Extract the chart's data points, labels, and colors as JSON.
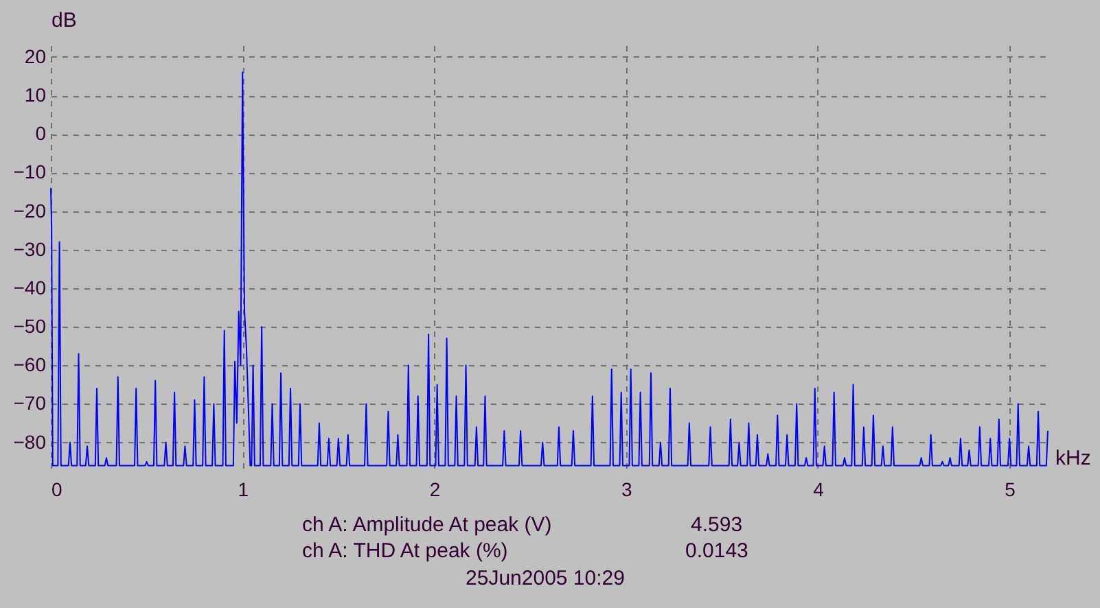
{
  "chart_data": {
    "type": "line",
    "ylabel": "dB",
    "xlabel": "kHz",
    "annotations": [
      "ch A: Amplitude At peak (V)",
      "4.593",
      "ch A: THD At peak (%)",
      "0.0143",
      "25Jun2005  10:29"
    ],
    "x": [
      0,
      0.004,
      0.01,
      0.037,
      0.045,
      0.053,
      0.092,
      0.1,
      0.108,
      0.137,
      0.145,
      0.153,
      0.182,
      0.19,
      0.198,
      0.232,
      0.24,
      0.248,
      0.282,
      0.29,
      0.298,
      0.342,
      0.35,
      0.358,
      0.437,
      0.445,
      0.453,
      0.492,
      0.5,
      0.508,
      0.537,
      0.545,
      0.553,
      0.592,
      0.6,
      0.608,
      0.637,
      0.645,
      0.653,
      0.692,
      0.7,
      0.708,
      0.742,
      0.75,
      0.758,
      0.792,
      0.8,
      0.808,
      0.842,
      0.85,
      0.858,
      0.897,
      0.905,
      0.913,
      0.952,
      0.96,
      0.97,
      0.98,
      0.99,
      1.0,
      1.01,
      1.02,
      1.03,
      1.04,
      1.047,
      1.055,
      1.063,
      1.092,
      1.1,
      1.108,
      1.147,
      1.155,
      1.163,
      1.192,
      1.2,
      1.208,
      1.242,
      1.25,
      1.258,
      1.292,
      1.3,
      1.308,
      1.392,
      1.4,
      1.408,
      1.442,
      1.45,
      1.458,
      1.492,
      1.5,
      1.508,
      1.542,
      1.55,
      1.558,
      1.637,
      1.645,
      1.653,
      1.752,
      1.76,
      1.768,
      1.802,
      1.81,
      1.818,
      1.857,
      1.865,
      1.873,
      1.907,
      1.915,
      1.923,
      1.962,
      1.97,
      1.978,
      2.007,
      2.015,
      2.023,
      2.057,
      2.065,
      2.073,
      2.107,
      2.115,
      2.123,
      2.157,
      2.165,
      2.173,
      2.212,
      2.22,
      2.228,
      2.257,
      2.265,
      2.273,
      2.357,
      2.365,
      2.373,
      2.442,
      2.45,
      2.458,
      2.557,
      2.565,
      2.573,
      2.642,
      2.65,
      2.658,
      2.717,
      2.725,
      2.733,
      2.817,
      2.825,
      2.833,
      2.917,
      2.925,
      2.933,
      2.967,
      2.975,
      2.983,
      3.017,
      3.025,
      3.033,
      3.067,
      3.075,
      3.083,
      3.122,
      3.13,
      3.138,
      3.172,
      3.18,
      3.188,
      3.222,
      3.23,
      3.238,
      3.322,
      3.33,
      3.338,
      3.432,
      3.44,
      3.448,
      3.537,
      3.545,
      3.553,
      3.582,
      3.59,
      3.598,
      3.632,
      3.64,
      3.648,
      3.677,
      3.685,
      3.693,
      3.732,
      3.74,
      3.748,
      3.782,
      3.79,
      3.798,
      3.832,
      3.84,
      3.848,
      3.882,
      3.89,
      3.898,
      3.932,
      3.94,
      3.948,
      3.977,
      3.985,
      3.993,
      4.027,
      4.035,
      4.043,
      4.077,
      4.085,
      4.093,
      4.132,
      4.14,
      4.148,
      4.177,
      4.185,
      4.193,
      4.232,
      4.24,
      4.248,
      4.282,
      4.29,
      4.298,
      4.332,
      4.34,
      4.348,
      4.382,
      4.39,
      4.398,
      4.532,
      4.54,
      4.548,
      4.582,
      4.59,
      4.598,
      4.642,
      4.65,
      4.658,
      4.682,
      4.69,
      4.698,
      4.737,
      4.745,
      4.753,
      4.782,
      4.79,
      4.798,
      4.837,
      4.845,
      4.853,
      4.892,
      4.9,
      4.908,
      4.937,
      4.945,
      4.953,
      4.992,
      5.0,
      5.008,
      5.037,
      5.045,
      5.053,
      5.092,
      5.1,
      5.108,
      5.142,
      5.15,
      5.158,
      5.192,
      5.2
    ],
    "series": [
      {
        "color": "#0000ff",
        "values": [
          -14,
          -24,
          -86,
          -86,
          -28,
          -86,
          -86,
          -80,
          -86,
          -86,
          -57,
          -86,
          -86,
          -81,
          -86,
          -86,
          -66,
          -86,
          -86,
          -84,
          -86,
          -86,
          -63,
          -86,
          -86,
          -66,
          -86,
          -86,
          -85,
          -86,
          -86,
          -64,
          -86,
          -86,
          -80,
          -86,
          -86,
          -67,
          -86,
          -86,
          -81,
          -86,
          -86,
          -69,
          -86,
          -86,
          -63,
          -86,
          -86,
          -70,
          -86,
          -86,
          -51,
          -86,
          -86,
          -59,
          -75,
          -46,
          -60,
          16,
          -46,
          -55,
          -70,
          -86,
          -86,
          -60,
          -86,
          -86,
          -50,
          -86,
          -86,
          -70,
          -86,
          -86,
          -62,
          -86,
          -86,
          -66,
          -86,
          -86,
          -70,
          -86,
          -86,
          -75,
          -86,
          -86,
          -79,
          -86,
          -86,
          -79,
          -86,
          -86,
          -78,
          -86,
          -86,
          -70,
          -86,
          -86,
          -72,
          -86,
          -86,
          -78,
          -86,
          -86,
          -60,
          -86,
          -86,
          -68,
          -86,
          -86,
          -52,
          -86,
          -86,
          -65,
          -86,
          -86,
          -53,
          -86,
          -86,
          -68,
          -86,
          -86,
          -60,
          -86,
          -86,
          -76,
          -86,
          -86,
          -68,
          -86,
          -86,
          -77,
          -86,
          -86,
          -77,
          -86,
          -86,
          -80,
          -86,
          -86,
          -76,
          -86,
          -86,
          -77,
          -86,
          -86,
          -68,
          -86,
          -86,
          -61,
          -86,
          -86,
          -67,
          -86,
          -86,
          -61,
          -86,
          -86,
          -67,
          -86,
          -86,
          -62,
          -86,
          -86,
          -80,
          -86,
          -86,
          -66,
          -86,
          -86,
          -75,
          -86,
          -86,
          -76,
          -86,
          -86,
          -74,
          -86,
          -86,
          -80,
          -86,
          -86,
          -75,
          -86,
          -86,
          -78,
          -86,
          -86,
          -83,
          -86,
          -86,
          -73,
          -86,
          -86,
          -78,
          -86,
          -86,
          -70,
          -86,
          -86,
          -84,
          -86,
          -86,
          -66,
          -86,
          -86,
          -81,
          -86,
          -86,
          -67,
          -86,
          -86,
          -84,
          -86,
          -86,
          -65,
          -86,
          -86,
          -76,
          -86,
          -86,
          -73,
          -86,
          -86,
          -81,
          -86,
          -86,
          -76,
          -86,
          -86,
          -84,
          -86,
          -86,
          -78,
          -86,
          -86,
          -85,
          -86,
          -86,
          -84,
          -86,
          -86,
          -79,
          -86,
          -86,
          -82,
          -86,
          -86,
          -76,
          -86,
          -86,
          -79,
          -86,
          -86,
          -74,
          -86,
          -86,
          -79,
          -86,
          -86,
          -70,
          -86,
          -86,
          -81,
          -86,
          -86,
          -72,
          -86,
          -86,
          -77
        ]
      }
    ],
    "xlim": [
      0,
      5.2
    ],
    "ylim": [
      -87,
      23
    ],
    "xticks": [
      0,
      1,
      2,
      3,
      4,
      5
    ],
    "yticks": [
      20,
      10,
      0,
      -10,
      -20,
      -30,
      -40,
      -50,
      -60,
      -70,
      -80
    ],
    "grid": true
  }
}
